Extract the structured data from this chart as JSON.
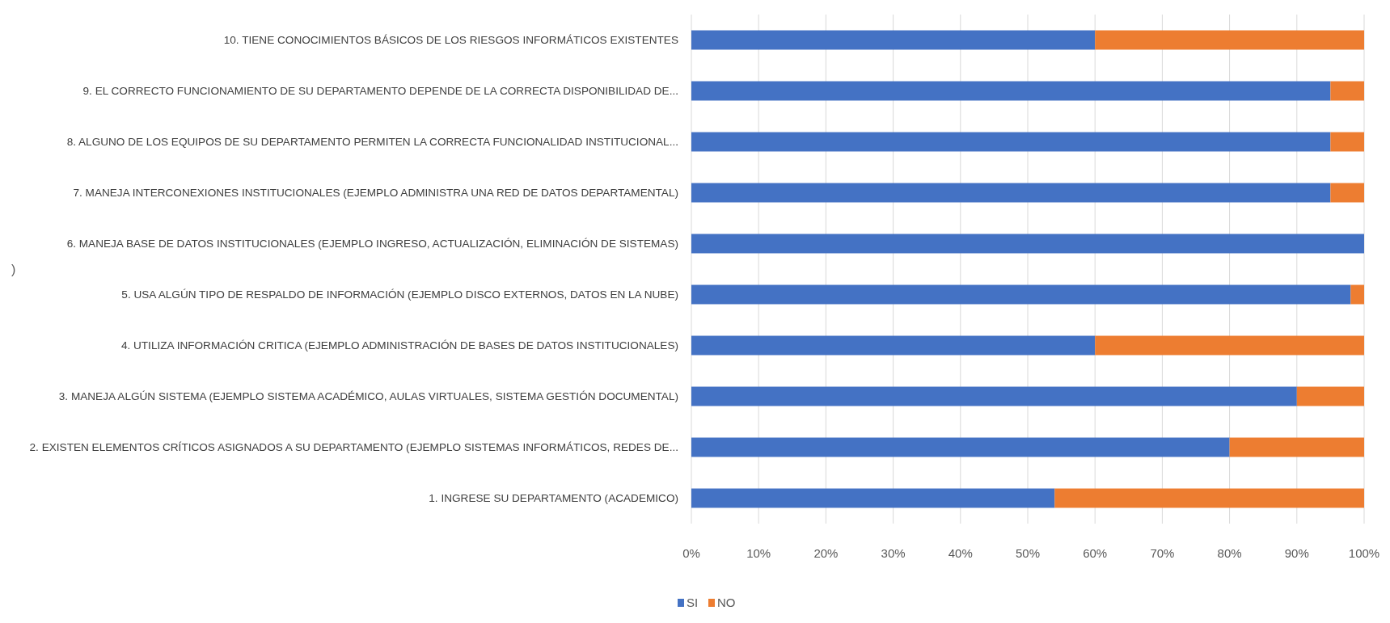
{
  "chart_data": {
    "type": "bar",
    "orientation": "horizontal",
    "stacked": true,
    "ylabel": ")",
    "categories": [
      "10. TIENE CONOCIMIENTOS BÁSICOS DE LOS RIESGOS INFORMÁTICOS EXISTENTES",
      "9. EL CORRECTO FUNCIONAMIENTO DE SU DEPARTAMENTO DEPENDE DE LA CORRECTA DISPONIBILIDAD DE...",
      "8. ALGUNO DE LOS EQUIPOS DE SU DEPARTAMENTO PERMITEN LA CORRECTA FUNCIONALIDAD INSTITUCIONAL...",
      "7. MANEJA INTERCONEXIONES INSTITUCIONALES (EJEMPLO ADMINISTRA UNA RED DE DATOS DEPARTAMENTAL)",
      "6. MANEJA BASE DE DATOS INSTITUCIONALES (EJEMPLO INGRESO, ACTUALIZACIÓN, ELIMINACIÓN DE SISTEMAS)",
      "5. USA ALGÚN TIPO DE RESPALDO DE INFORMACIÓN (EJEMPLO DISCO EXTERNOS, DATOS EN LA NUBE)",
      "4. UTILIZA INFORMACIÓN CRITICA (EJEMPLO ADMINISTRACIÓN DE BASES DE DATOS INSTITUCIONALES)",
      "3. MANEJA ALGÚN SISTEMA (EJEMPLO SISTEMA ACADÉMICO, AULAS VIRTUALES, SISTEMA GESTIÓN DOCUMENTAL)",
      "2. EXISTEN ELEMENTOS CRÍTICOS ASIGNADOS A SU DEPARTAMENTO (EJEMPLO SISTEMAS INFORMÁTICOS, REDES DE...",
      "1. INGRESE SU DEPARTAMENTO (ACADEMICO)"
    ],
    "series": [
      {
        "name": "SI",
        "color": "#4472c4",
        "values": [
          60,
          95,
          95,
          95,
          100,
          98,
          60,
          90,
          80,
          54
        ]
      },
      {
        "name": "NO",
        "color": "#ed7d31",
        "values": [
          40,
          5,
          5,
          5,
          0,
          2,
          40,
          10,
          20,
          46
        ]
      }
    ],
    "xlim": [
      0,
      100
    ],
    "xticks": [
      {
        "value": 0,
        "label": "0%"
      },
      {
        "value": 10,
        "label": "10%"
      },
      {
        "value": 20,
        "label": "20%"
      },
      {
        "value": 30,
        "label": "30%"
      },
      {
        "value": 40,
        "label": "40%"
      },
      {
        "value": 50,
        "label": "50%"
      },
      {
        "value": 60,
        "label": "60%"
      },
      {
        "value": 70,
        "label": "70%"
      },
      {
        "value": 80,
        "label": "80%"
      },
      {
        "value": 90,
        "label": "90%"
      },
      {
        "value": 100,
        "label": "100%"
      }
    ],
    "grid": "x",
    "legend": "bottom"
  }
}
